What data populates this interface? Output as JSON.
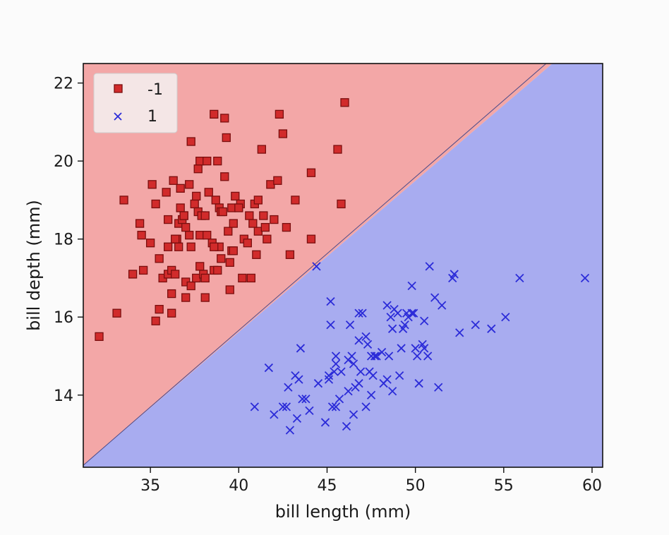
{
  "chart_data": {
    "type": "scatter",
    "title": "",
    "xlabel": "bill length (mm)",
    "ylabel": "bill depth (mm)",
    "xlim": [
      31.2,
      60.6
    ],
    "ylim": [
      12.15,
      22.5
    ],
    "xticks": [
      35,
      40,
      45,
      50,
      55,
      60
    ],
    "yticks": [
      14,
      16,
      18,
      20,
      22
    ],
    "grid": false,
    "legend_position": "top-left",
    "decision_boundary": {
      "points": [
        [
          31.2,
          12.2
        ],
        [
          57.4,
          22.5
        ]
      ],
      "upper_region_class": "-1",
      "lower_region_class": "1",
      "upper_color": "#f3a7a7",
      "lower_color": "#a8acf0"
    },
    "series": [
      {
        "name": "-1",
        "marker": "square",
        "color": "#d12b2b",
        "edge_color": "#7a0f0f",
        "points": [
          [
            32.1,
            15.5
          ],
          [
            33.1,
            16.1
          ],
          [
            33.5,
            19.0
          ],
          [
            34.0,
            17.1
          ],
          [
            34.4,
            18.4
          ],
          [
            34.5,
            18.1
          ],
          [
            34.6,
            17.2
          ],
          [
            35.0,
            17.9
          ],
          [
            35.1,
            19.4
          ],
          [
            35.3,
            18.9
          ],
          [
            35.3,
            15.9
          ],
          [
            35.5,
            16.2
          ],
          [
            35.5,
            17.5
          ],
          [
            35.7,
            17.0
          ],
          [
            35.9,
            19.2
          ],
          [
            36.0,
            18.5
          ],
          [
            36.0,
            17.8
          ],
          [
            36.0,
            17.1
          ],
          [
            36.2,
            17.2
          ],
          [
            36.2,
            16.1
          ],
          [
            36.2,
            16.6
          ],
          [
            36.3,
            19.5
          ],
          [
            36.4,
            17.1
          ],
          [
            36.5,
            18.0
          ],
          [
            36.6,
            17.8
          ],
          [
            36.6,
            18.4
          ],
          [
            36.7,
            18.8
          ],
          [
            36.7,
            19.3
          ],
          [
            36.8,
            18.5
          ],
          [
            36.9,
            18.6
          ],
          [
            37.0,
            16.9
          ],
          [
            37.0,
            16.5
          ],
          [
            37.2,
            18.1
          ],
          [
            37.2,
            19.4
          ],
          [
            37.3,
            20.5
          ],
          [
            37.3,
            17.8
          ],
          [
            37.3,
            16.8
          ],
          [
            37.5,
            18.9
          ],
          [
            37.6,
            19.1
          ],
          [
            37.6,
            17.0
          ],
          [
            37.7,
            18.7
          ],
          [
            37.7,
            19.8
          ],
          [
            37.8,
            18.1
          ],
          [
            37.8,
            20.0
          ],
          [
            37.8,
            17.3
          ],
          [
            37.9,
            18.6
          ],
          [
            38.0,
            17.1
          ],
          [
            38.1,
            18.6
          ],
          [
            38.1,
            17.0
          ],
          [
            38.1,
            16.5
          ],
          [
            38.2,
            18.1
          ],
          [
            38.2,
            20.0
          ],
          [
            38.3,
            19.2
          ],
          [
            38.5,
            17.9
          ],
          [
            38.6,
            21.2
          ],
          [
            38.6,
            17.2
          ],
          [
            38.7,
            19.0
          ],
          [
            38.8,
            17.2
          ],
          [
            38.8,
            20.0
          ],
          [
            38.9,
            17.8
          ],
          [
            38.9,
            18.8
          ],
          [
            39.0,
            17.5
          ],
          [
            39.0,
            18.7
          ],
          [
            39.1,
            18.7
          ],
          [
            39.2,
            19.6
          ],
          [
            39.2,
            21.1
          ],
          [
            39.3,
            20.6
          ],
          [
            39.5,
            17.4
          ],
          [
            39.5,
            16.7
          ],
          [
            39.6,
            17.7
          ],
          [
            39.6,
            18.8
          ],
          [
            39.7,
            18.4
          ],
          [
            39.8,
            19.1
          ],
          [
            40.1,
            18.9
          ],
          [
            40.2,
            17.0
          ],
          [
            40.3,
            18.0
          ],
          [
            40.5,
            17.9
          ],
          [
            40.6,
            18.6
          ],
          [
            40.7,
            17.0
          ],
          [
            40.8,
            18.4
          ],
          [
            40.9,
            18.9
          ],
          [
            41.0,
            17.6
          ],
          [
            41.1,
            18.2
          ],
          [
            41.1,
            19.0
          ],
          [
            41.3,
            20.3
          ],
          [
            41.4,
            18.6
          ],
          [
            41.5,
            18.3
          ],
          [
            41.6,
            18.0
          ],
          [
            41.8,
            19.4
          ],
          [
            42.0,
            18.5
          ],
          [
            42.2,
            19.5
          ],
          [
            42.3,
            21.2
          ],
          [
            42.5,
            20.7
          ],
          [
            42.7,
            18.3
          ],
          [
            42.9,
            17.6
          ],
          [
            43.2,
            19.0
          ],
          [
            44.1,
            19.7
          ],
          [
            44.1,
            18.0
          ],
          [
            45.6,
            20.3
          ],
          [
            45.8,
            18.9
          ],
          [
            46.0,
            21.5
          ],
          [
            36.9,
            18.6
          ],
          [
            39.7,
            17.7
          ],
          [
            40.0,
            18.8
          ],
          [
            37.0,
            18.3
          ],
          [
            38.6,
            17.8
          ],
          [
            36.4,
            18.0
          ],
          [
            39.4,
            18.2
          ]
        ]
      },
      {
        "name": "1",
        "marker": "x",
        "color": "#2b2bd8",
        "points": [
          [
            40.9,
            13.7
          ],
          [
            41.7,
            14.7
          ],
          [
            42.0,
            13.5
          ],
          [
            42.5,
            13.7
          ],
          [
            42.7,
            13.7
          ],
          [
            42.8,
            14.2
          ],
          [
            42.9,
            13.1
          ],
          [
            43.2,
            14.5
          ],
          [
            43.3,
            13.4
          ],
          [
            43.4,
            14.4
          ],
          [
            43.5,
            15.2
          ],
          [
            43.6,
            13.9
          ],
          [
            43.8,
            13.9
          ],
          [
            44.0,
            13.6
          ],
          [
            44.4,
            17.3
          ],
          [
            44.5,
            14.3
          ],
          [
            44.9,
            13.3
          ],
          [
            45.1,
            14.5
          ],
          [
            45.2,
            16.4
          ],
          [
            45.2,
            15.8
          ],
          [
            45.3,
            13.7
          ],
          [
            45.4,
            14.6
          ],
          [
            45.5,
            13.7
          ],
          [
            45.5,
            15.0
          ],
          [
            45.7,
            13.9
          ],
          [
            45.8,
            14.6
          ],
          [
            46.1,
            13.2
          ],
          [
            46.2,
            14.1
          ],
          [
            46.2,
            14.9
          ],
          [
            46.4,
            15.0
          ],
          [
            46.5,
            13.5
          ],
          [
            46.6,
            14.2
          ],
          [
            46.8,
            14.3
          ],
          [
            46.8,
            15.4
          ],
          [
            46.9,
            14.6
          ],
          [
            47.0,
            16.1
          ],
          [
            47.2,
            13.7
          ],
          [
            47.3,
            15.3
          ],
          [
            47.4,
            14.6
          ],
          [
            47.5,
            14.0
          ],
          [
            47.6,
            14.5
          ],
          [
            47.7,
            15.0
          ],
          [
            47.8,
            15.0
          ],
          [
            48.1,
            15.1
          ],
          [
            48.2,
            14.3
          ],
          [
            48.4,
            14.4
          ],
          [
            48.5,
            15.0
          ],
          [
            48.6,
            16.0
          ],
          [
            48.7,
            14.1
          ],
          [
            48.8,
            16.2
          ],
          [
            49.0,
            16.1
          ],
          [
            49.1,
            14.5
          ],
          [
            49.2,
            15.2
          ],
          [
            49.3,
            15.7
          ],
          [
            49.4,
            15.8
          ],
          [
            49.5,
            16.1
          ],
          [
            49.6,
            16.0
          ],
          [
            49.8,
            16.1
          ],
          [
            50.0,
            15.2
          ],
          [
            50.1,
            15.0
          ],
          [
            50.2,
            14.3
          ],
          [
            50.4,
            15.3
          ],
          [
            50.5,
            15.9
          ],
          [
            50.7,
            15.0
          ],
          [
            50.8,
            17.3
          ],
          [
            51.1,
            16.5
          ],
          [
            51.3,
            14.2
          ],
          [
            51.5,
            16.3
          ],
          [
            52.1,
            17.0
          ],
          [
            52.2,
            17.1
          ],
          [
            52.5,
            15.6
          ],
          [
            53.4,
            15.8
          ],
          [
            54.3,
            15.7
          ],
          [
            55.1,
            16.0
          ],
          [
            55.9,
            17.0
          ],
          [
            59.6,
            17.0
          ],
          [
            45.1,
            14.4
          ],
          [
            46.3,
            15.8
          ],
          [
            47.2,
            15.5
          ],
          [
            48.4,
            16.3
          ],
          [
            49.9,
            16.1
          ],
          [
            50.5,
            15.2
          ],
          [
            46.5,
            14.8
          ],
          [
            47.5,
            15.0
          ],
          [
            45.5,
            14.8
          ],
          [
            48.7,
            15.7
          ],
          [
            49.8,
            16.8
          ],
          [
            46.8,
            16.1
          ]
        ]
      }
    ]
  }
}
